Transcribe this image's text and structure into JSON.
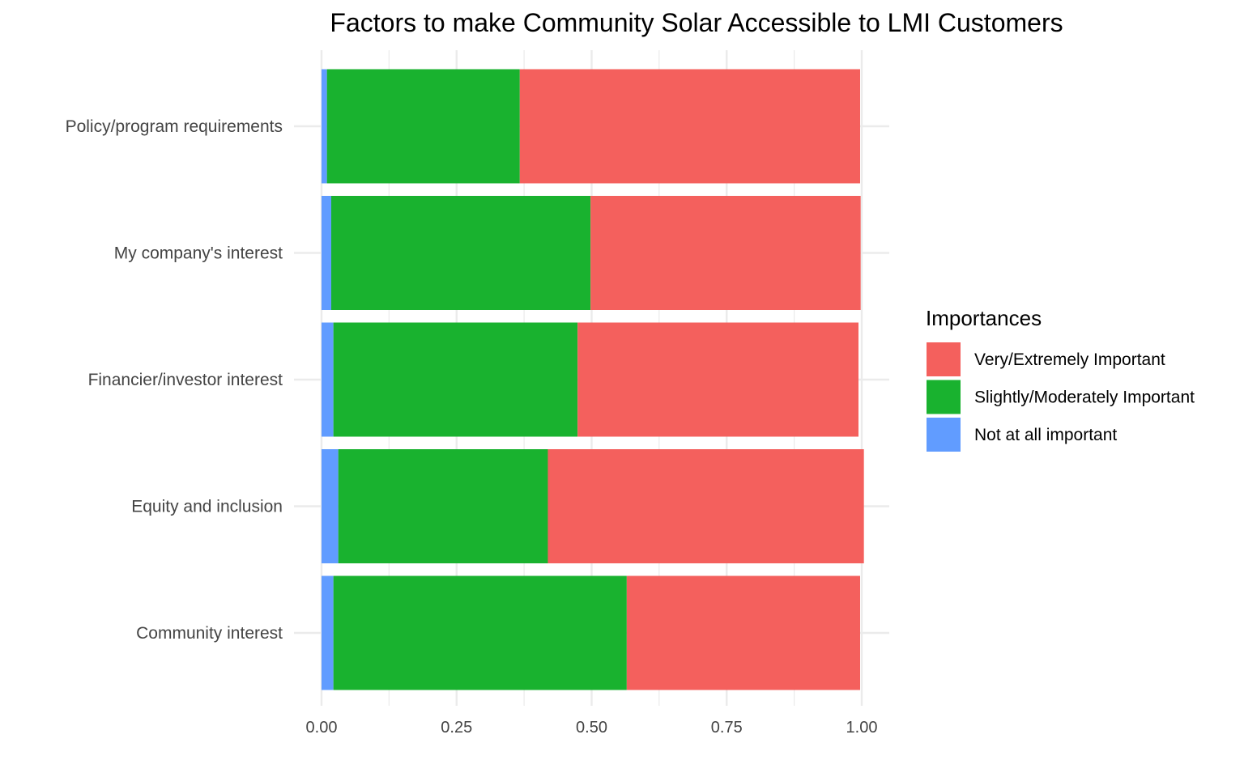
{
  "chart_data": {
    "type": "bar",
    "orientation": "horizontal",
    "stacked": true,
    "title": "Factors to make Community Solar Accessible to LMI Customers",
    "xlabel": "",
    "ylabel": "",
    "xlim": [
      0,
      1
    ],
    "x_ticks": [
      "0.00",
      "0.25",
      "0.50",
      "0.75",
      "1.00"
    ],
    "x_tick_values": [
      0,
      0.25,
      0.5,
      0.75,
      1.0
    ],
    "categories": [
      "Policy/program requirements",
      "My company's interest",
      "Financier/investor interest",
      "Equity and inclusion",
      "Community interest"
    ],
    "series": [
      {
        "name": "Not at all important",
        "color": "#619CFF",
        "values": [
          0.01,
          0.018,
          0.022,
          0.031,
          0.022
        ]
      },
      {
        "name": "Slightly/Moderately Important",
        "color": "#19B22F",
        "values": [
          0.357,
          0.48,
          0.452,
          0.388,
          0.543
        ]
      },
      {
        "name": "Very/Extremely Important",
        "color": "#F4605D",
        "values": [
          0.63,
          0.5,
          0.52,
          0.585,
          0.432
        ]
      }
    ],
    "legend": {
      "title": "Importances",
      "position": "right",
      "order": [
        "Very/Extremely Important",
        "Slightly/Moderately Important",
        "Not at all important"
      ]
    },
    "grid": true
  }
}
